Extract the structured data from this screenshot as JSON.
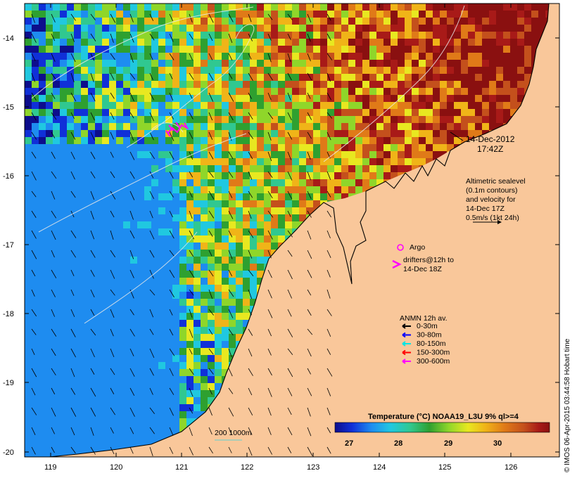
{
  "map": {
    "date_label": "14-Dec-2012",
    "time_label": "17:42Z",
    "altimetry_note": [
      "Altimetric sealevel",
      "(0.1m contours)",
      "and velocity for",
      "14-Dec 17Z",
      "0.5m/s (1kt 24h)"
    ],
    "argo_label": "Argo",
    "drifters_note": [
      "drifters@12h to",
      "14-Dec 18Z"
    ],
    "anmn_title": "ANMN 12h av.",
    "anmn_legend": [
      {
        "label": "0-30m",
        "color": "#000000"
      },
      {
        "label": "30-80m",
        "color": "#0000ff"
      },
      {
        "label": "80-150m",
        "color": "#00e5e5"
      },
      {
        "label": "150-300m",
        "color": "#ff0000"
      },
      {
        "label": "300-600m",
        "color": "#ff00ff"
      }
    ],
    "depth_contours_label": "200 1000m",
    "colorbar_title": "Temperature (°C) NOAA19_L3U 9% ql>=4",
    "colorbar_ticks": [
      "27",
      "28",
      "29",
      "30"
    ],
    "credit": "© IMOS 06-Apr-2015 03:44:58 Hobart time",
    "lat_ticks": [
      "-14",
      "-15",
      "-16",
      "-17",
      "-18",
      "-19",
      "-20"
    ],
    "lon_ticks": [
      "119",
      "120",
      "121",
      "122",
      "123",
      "124",
      "125",
      "126"
    ],
    "colors": {
      "land": "#f9c79a",
      "sst_palette": [
        "#0d0d8c",
        "#1030d8",
        "#1e8cf0",
        "#20c8e0",
        "#30c890",
        "#2ea030",
        "#8fd62a",
        "#e8e820",
        "#f0b418",
        "#e07a18",
        "#c4501c",
        "#a81a18",
        "#8a1010"
      ]
    }
  }
}
